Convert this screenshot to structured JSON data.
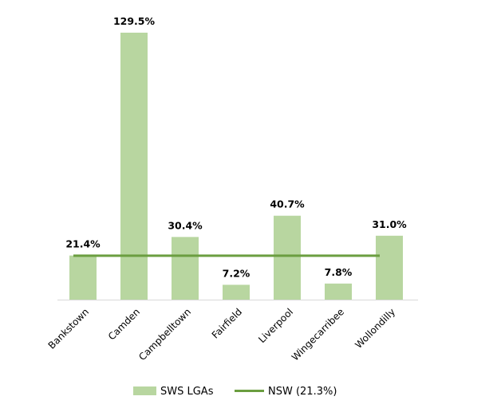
{
  "chart_data": {
    "type": "bar",
    "categories": [
      "Bankstown",
      "Camden",
      "Campbelltown",
      "Fairfield",
      "Liverpool",
      "Wingecarribee",
      "Wollondilly"
    ],
    "series": [
      {
        "name": "SWS LGAs",
        "values": [
          21.4,
          129.5,
          30.4,
          7.2,
          40.7,
          7.8,
          31.0
        ],
        "labels": [
          "21.4%",
          "129.5%",
          "30.4%",
          "7.2%",
          "40.7%",
          "7.8%",
          "31.0%"
        ],
        "color": "#b8d6a0"
      },
      {
        "name": "NSW (21.3%)",
        "type": "line",
        "value": 21.3,
        "color": "#6b9e40"
      }
    ],
    "ylim": [
      0,
      130
    ],
    "grid": false,
    "legend": "bottom"
  }
}
